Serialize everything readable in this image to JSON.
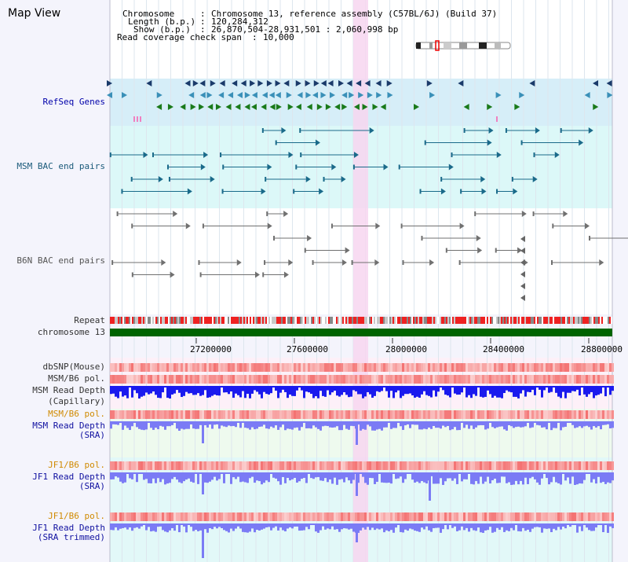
{
  "page": {
    "title": "Map View"
  },
  "info": {
    "chromosome_key": "Chromosome",
    "chromosome_val": "Chromosome 13, reference assembly (C57BL/6J) (Build 37)",
    "length_key": "Length (b.p.)",
    "length_val": "120,284,312",
    "show_key": "Show (b.p.)",
    "show_val": "26,870,504-28,931,501 : 2,060,998 bp",
    "coverage_key": "Read coverage check span",
    "coverage_val": "10,000"
  },
  "tracks": {
    "refseq": "RefSeq Genes",
    "msm_bac": "MSM BAC end pairs",
    "b6n_bac": "B6N BAC end pairs",
    "repeat": "Repeat",
    "chromosome": "chromosome 13",
    "dbsnp": "dbSNP(Mouse)",
    "msm_b6_pol_1": "MSM/B6 pol.",
    "msm_read_depth_cap_1": "MSM Read Depth",
    "msm_read_depth_cap_2": "(Capillary)",
    "msm_b6_pol_2": "MSM/B6 pol.",
    "msm_read_depth_sra_1": "MSM Read Depth",
    "msm_read_depth_sra_2": "(SRA)",
    "jf1_b6_pol_1": "JF1/B6 pol.",
    "jf1_read_depth_sra_1": "JF1 Read Depth",
    "jf1_read_depth_sra_2": "(SRA)",
    "jf1_b6_pol_2": "JF1/B6 pol.",
    "jf1_read_depth_trim_1": "JF1 Read Depth",
    "jf1_read_depth_trim_2": "(SRA trimmed)"
  },
  "axis": {
    "ticks": [
      "27200000",
      "27600000",
      "28000000",
      "28400000",
      "28800000"
    ]
  },
  "colors": {
    "background": "#f4f4fc",
    "refseq_band": "#d6eef8",
    "msm_band": "#dcf8f8",
    "highlight": "#f7d6f0",
    "chromosome_bar": "#006400",
    "repeat_red": "#ee2222",
    "depth_blue": "#1a1aee",
    "sra_blue": "#7b7bf5"
  }
}
